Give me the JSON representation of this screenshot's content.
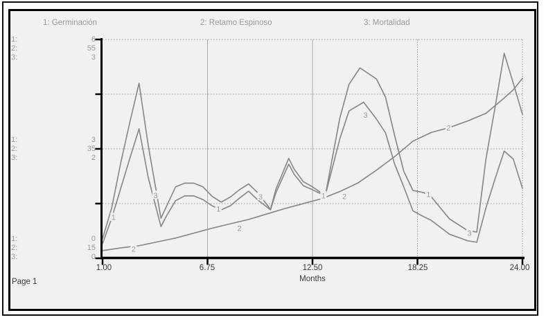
{
  "window": {
    "page_label": "Page 1"
  },
  "legend": [
    "1: Germinación",
    "2: Retamo Espinoso",
    "3: Mortalidad"
  ],
  "y_scales": {
    "prefixes": [
      "1:",
      "2:",
      "3:"
    ],
    "clusters": [
      {
        "position": "top",
        "values": [
          "6",
          "55",
          "3"
        ]
      },
      {
        "position": "middle",
        "values": [
          "3",
          "35",
          "2"
        ]
      },
      {
        "position": "bottom",
        "values": [
          "0",
          "15",
          "0"
        ]
      }
    ]
  },
  "x_axis": {
    "title": "Months",
    "tick_labels": [
      "1.00",
      "6.75",
      "12.50",
      "18.25",
      "24.00"
    ]
  },
  "colors": {
    "curve": "#8a8a8a",
    "text_muted": "#9b9b9b",
    "axis": "#000000",
    "tick_text": "#3a3a3a",
    "plot_bg": "#f1f1f1",
    "grid_dotted": "#9a9a9a",
    "grid_solid": "#ababab"
  },
  "chart_data": {
    "type": "line",
    "xlabel": "Months",
    "x_range": [
      1,
      24
    ],
    "x_ticks": [
      1,
      6.75,
      12.5,
      18.25,
      24
    ],
    "grid": {
      "horizontal_fractions": [
        0,
        0.25,
        0.5,
        0.75
      ],
      "legend_position": "top"
    },
    "series": [
      {
        "index": 1,
        "name": "Germinación",
        "ylim": [
          0,
          6
        ],
        "scale_labels": {
          "max": "6",
          "mid": "3",
          "min": "0"
        },
        "points": [
          [
            1,
            0.4
          ],
          [
            1.5,
            1.1
          ],
          [
            2,
            1.92
          ],
          [
            2.5,
            2.75
          ],
          [
            3,
            3.55
          ],
          [
            3.5,
            2.22
          ],
          [
            4.2,
            0.87
          ],
          [
            4.5,
            1.16
          ],
          [
            5,
            1.58
          ],
          [
            5.5,
            1.71
          ],
          [
            6,
            1.71
          ],
          [
            6.5,
            1.61
          ],
          [
            7,
            1.44
          ],
          [
            7.5,
            1.33
          ],
          [
            8,
            1.44
          ],
          [
            8.5,
            1.65
          ],
          [
            9,
            1.84
          ],
          [
            9.5,
            1.6
          ],
          [
            10.2,
            1.33
          ],
          [
            10.5,
            1.8
          ],
          [
            11.2,
            2.58
          ],
          [
            11.5,
            2.3
          ],
          [
            12,
            1.99
          ],
          [
            12.5,
            1.88
          ],
          [
            13.2,
            1.71
          ],
          [
            14,
            3.85
          ],
          [
            14.5,
            4.77
          ],
          [
            15.1,
            5.22
          ],
          [
            16,
            4.92
          ],
          [
            16.5,
            4.42
          ],
          [
            17,
            3.36
          ],
          [
            17.5,
            2.39
          ],
          [
            18,
            1.86
          ],
          [
            18.6,
            1.8
          ],
          [
            19,
            1.69
          ],
          [
            20,
            1.08
          ],
          [
            21,
            0.76
          ],
          [
            21.5,
            0.72
          ],
          [
            22,
            2.72
          ],
          [
            22.5,
            4.14
          ],
          [
            23,
            5.62
          ],
          [
            23.5,
            4.8
          ],
          [
            24,
            3.95
          ]
        ],
        "label_anchors": [
          [
            1.6,
            1.14
          ],
          [
            7.35,
            1.37
          ],
          [
            13.1,
            1.73
          ],
          [
            18.85,
            1.77
          ]
        ]
      },
      {
        "index": 2,
        "name": "Retamo Espinoso",
        "ylim": [
          15,
          55
        ],
        "scale_labels": {
          "max": "55",
          "mid": "35",
          "min": "15"
        },
        "points": [
          [
            1,
            16.4
          ],
          [
            2,
            16.9
          ],
          [
            3,
            17.3
          ],
          [
            4,
            18.0
          ],
          [
            5,
            18.7
          ],
          [
            6,
            19.6
          ],
          [
            7,
            20.5
          ],
          [
            8,
            21.3
          ],
          [
            9,
            22.1
          ],
          [
            10,
            23.1
          ],
          [
            11,
            24.1
          ],
          [
            12,
            25.0
          ],
          [
            13,
            25.9
          ],
          [
            14,
            27.2
          ],
          [
            15,
            28.8
          ],
          [
            16,
            31.1
          ],
          [
            17,
            33.6
          ],
          [
            18,
            36.4
          ],
          [
            19,
            38.0
          ],
          [
            20,
            38.9
          ],
          [
            21,
            40.1
          ],
          [
            22,
            41.5
          ],
          [
            23,
            44.3
          ],
          [
            23.5,
            45.8
          ],
          [
            24,
            47.9
          ]
        ],
        "label_anchors": [
          [
            2.7,
            16.8
          ],
          [
            8.5,
            20.6
          ],
          [
            14.25,
            26.4
          ],
          [
            19.95,
            38.9
          ]
        ]
      },
      {
        "index": 3,
        "name": "Mortalidad",
        "ylim": [
          0,
          3
        ],
        "scale_labels": {
          "max": "3",
          "mid": "2",
          "min": "0"
        },
        "points": [
          [
            1,
            0.27
          ],
          [
            1.5,
            0.69
          ],
          [
            2,
            1.31
          ],
          [
            2.5,
            1.87
          ],
          [
            3,
            2.4
          ],
          [
            3.5,
            1.55
          ],
          [
            4.2,
            0.55
          ],
          [
            4.5,
            0.71
          ],
          [
            5,
            0.98
          ],
          [
            5.5,
            1.03
          ],
          [
            6,
            1.03
          ],
          [
            6.5,
            0.98
          ],
          [
            7,
            0.85
          ],
          [
            7.5,
            0.77
          ],
          [
            8,
            0.84
          ],
          [
            8.5,
            0.94
          ],
          [
            9,
            1.02
          ],
          [
            9.5,
            0.9
          ],
          [
            10.2,
            0.67
          ],
          [
            10.5,
            0.95
          ],
          [
            11.2,
            1.37
          ],
          [
            11.5,
            1.22
          ],
          [
            12,
            1.05
          ],
          [
            12.5,
            0.98
          ],
          [
            13.2,
            0.86
          ],
          [
            14,
            1.64
          ],
          [
            14.5,
            2.02
          ],
          [
            15.3,
            2.14
          ],
          [
            16,
            1.91
          ],
          [
            16.5,
            1.72
          ],
          [
            17,
            1.29
          ],
          [
            17.5,
            0.98
          ],
          [
            18,
            0.65
          ],
          [
            18.6,
            0.57
          ],
          [
            19,
            0.52
          ],
          [
            20,
            0.33
          ],
          [
            21,
            0.24
          ],
          [
            21.5,
            0.22
          ],
          [
            22,
            0.69
          ],
          [
            22.5,
            1.09
          ],
          [
            23,
            1.47
          ],
          [
            23.5,
            1.36
          ],
          [
            24,
            0.96
          ]
        ],
        "label_anchors": [
          [
            3.9,
            0.87
          ],
          [
            9.65,
            0.85
          ],
          [
            15.4,
            1.97
          ],
          [
            21.1,
            0.35
          ]
        ]
      }
    ]
  }
}
